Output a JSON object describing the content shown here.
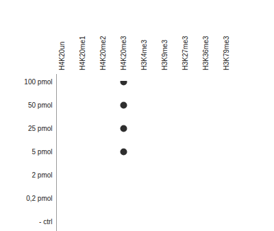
{
  "chart_data": {
    "type": "dotblot",
    "columns": [
      "H4K20un",
      "H4K20me1",
      "H4K20me2",
      "H4K20me3",
      "H3K4me3",
      "H3K9me3",
      "H3K27me3",
      "H3K36me3",
      "H3K79me3"
    ],
    "rows": [
      "100 pmol",
      "50 pmol",
      "25 pmol",
      "5 pmol",
      "2 pmol",
      "0,2 pmol",
      "- ctrl"
    ],
    "spots": [
      {
        "column": "H4K20me3",
        "row": "100 pmol"
      },
      {
        "column": "H4K20me3",
        "row": "50 pmol"
      },
      {
        "column": "H4K20me3",
        "row": "25 pmol"
      },
      {
        "column": "H4K20me3",
        "row": "5 pmol"
      }
    ],
    "color": "#2e2e2e"
  }
}
